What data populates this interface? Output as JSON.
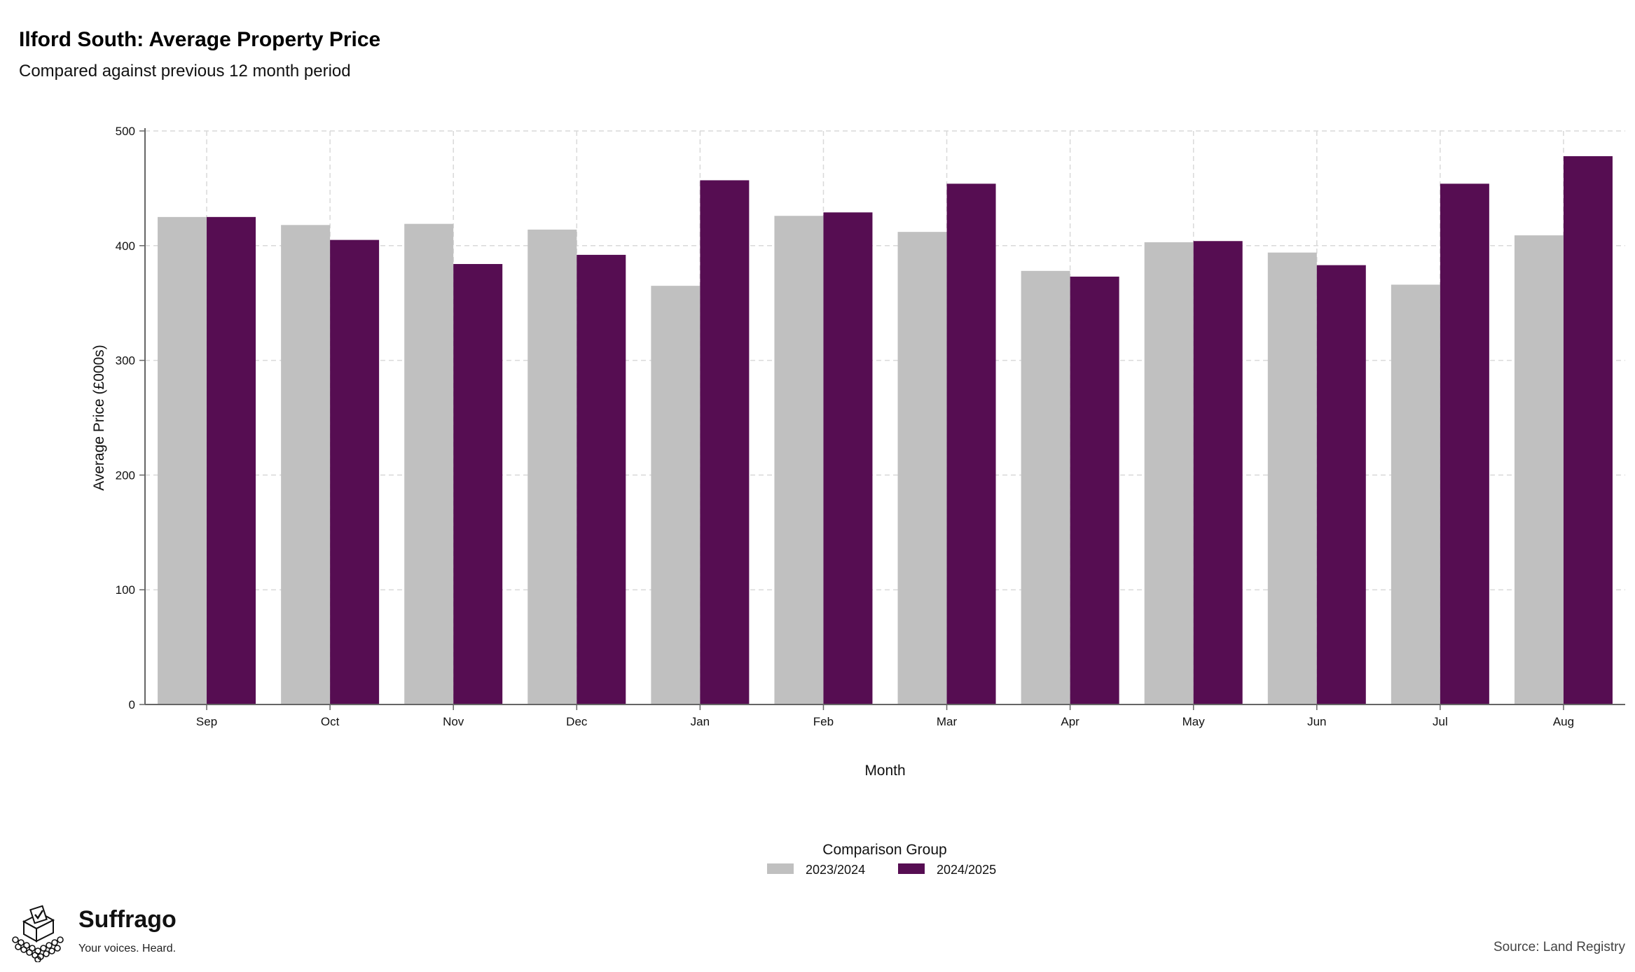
{
  "header": {
    "title": "Ilford South: Average Property Price",
    "subtitle": "Compared against previous 12 month period"
  },
  "footer": {
    "brand_name": "Suffrago",
    "brand_tagline": "Your voices. Heard.",
    "source": "Source: Land Registry"
  },
  "colors": {
    "series_2023": "#c0c0c0",
    "series_2024": "#560d52",
    "grid": "#d9d9d9",
    "axis": "#666666"
  },
  "chart_data": {
    "type": "bar",
    "title": "Ilford South: Average Property Price",
    "subtitle": "Compared against previous 12 month period",
    "xlabel": "Month",
    "ylabel": "Average Price (£000s)",
    "ylim": [
      0,
      500
    ],
    "yticks": [
      0,
      100,
      200,
      300,
      400,
      500
    ],
    "grid": true,
    "legend": {
      "title": "Comparison Group",
      "placement": "bottom"
    },
    "categories": [
      "Sep",
      "Oct",
      "Nov",
      "Dec",
      "Jan",
      "Feb",
      "Mar",
      "Apr",
      "May",
      "Jun",
      "Jul",
      "Aug"
    ],
    "series": [
      {
        "name": "2023/2024",
        "color": "#c0c0c0",
        "values": [
          425,
          418,
          419,
          414,
          365,
          426,
          412,
          378,
          403,
          394,
          366,
          409
        ]
      },
      {
        "name": "2024/2025",
        "color": "#560d52",
        "values": [
          425,
          405,
          384,
          392,
          457,
          429,
          454,
          373,
          404,
          383,
          454,
          478
        ]
      }
    ]
  }
}
